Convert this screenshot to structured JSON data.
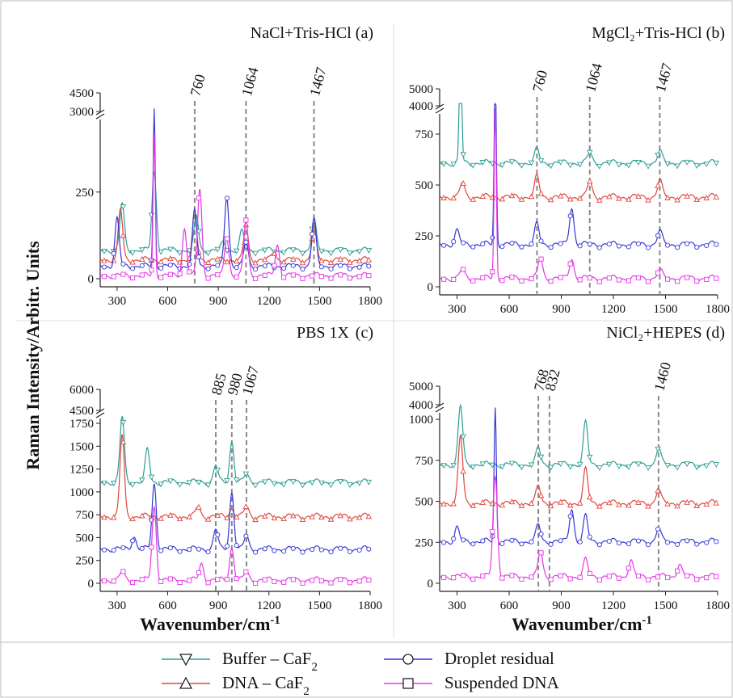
{
  "figure": {
    "ylabel": "Raman Intensity/Arbitr. Units",
    "xlabel": "Wavenumber/cm",
    "xlabel_sup": "-1"
  },
  "legend": [
    {
      "key": "buffer",
      "label": "Buffer – CaF",
      "sub": "2",
      "color": "#2e9e96",
      "marker": "triangle-down"
    },
    {
      "key": "dna",
      "label": "DNA – CaF",
      "sub": "2",
      "color": "#e0453a",
      "marker": "triangle-up"
    },
    {
      "key": "droplet",
      "label": "Droplet residual",
      "color": "#3636d6",
      "marker": "circle"
    },
    {
      "key": "suspended",
      "label": "Suspended DNA",
      "color": "#e636e6",
      "marker": "square"
    }
  ],
  "chart_data": [
    {
      "panel": "a",
      "type": "line",
      "title": "NaCl+Tris-HCl (a)",
      "x_ticks": [
        "300",
        "600",
        "900",
        "1200",
        "1500",
        "1800"
      ],
      "y_ticks": [
        "0",
        "250"
      ],
      "y_break_ticks": [
        "3000",
        "4500"
      ],
      "peak_lines": [
        "760",
        "1064",
        "1467"
      ],
      "series": [
        {
          "key": "buffer",
          "baseline": 0.18,
          "peaks": [
            [
              330,
              0.3
            ],
            [
              520,
              0.5
            ],
            [
              770,
              0.22
            ],
            [
              1040,
              0.12
            ],
            [
              1467,
              0.2
            ],
            [
              930,
              0.05
            ]
          ]
        },
        {
          "key": "dna",
          "baseline": 0.12,
          "peaks": [
            [
              320,
              0.32
            ],
            [
              760,
              0.3
            ],
            [
              1064,
              0.22
            ],
            [
              1467,
              0.2
            ],
            [
              1230,
              0.05
            ]
          ]
        },
        {
          "key": "droplet",
          "baseline": 0.08,
          "peaks": [
            [
              300,
              0.3
            ],
            [
              520,
              1.0
            ],
            [
              760,
              0.35
            ],
            [
              950,
              0.45
            ],
            [
              1064,
              0.15
            ],
            [
              1467,
              0.3
            ]
          ]
        },
        {
          "key": "suspended",
          "baseline": 0.02,
          "peaks": [
            [
              520,
              0.9
            ],
            [
              700,
              0.3
            ],
            [
              790,
              0.55
            ],
            [
              950,
              0.25
            ],
            [
              1064,
              0.35
            ],
            [
              1250,
              0.2
            ]
          ]
        }
      ]
    },
    {
      "panel": "b",
      "type": "line",
      "title": "MgCl₂+Tris-HCl (b)",
      "x_ticks": [
        "300",
        "600",
        "900",
        "1200",
        "1500",
        "1800"
      ],
      "y_ticks": [
        "0",
        "250",
        "500",
        "750"
      ],
      "y_break_ticks": [
        "4000",
        "5000"
      ],
      "peak_lines": [
        "760",
        "1064",
        "1467"
      ],
      "series": [
        {
          "key": "buffer",
          "baseline": 0.73,
          "peaks": [
            [
              320,
              1.0
            ],
            [
              760,
              0.08
            ],
            [
              1064,
              0.06
            ],
            [
              1467,
              0.07
            ]
          ]
        },
        {
          "key": "dna",
          "baseline": 0.53,
          "peaks": [
            [
              330,
              0.08
            ],
            [
              760,
              0.12
            ],
            [
              1064,
              0.09
            ],
            [
              1467,
              0.1
            ]
          ]
        },
        {
          "key": "droplet",
          "baseline": 0.25,
          "peaks": [
            [
              300,
              0.08
            ],
            [
              520,
              1.0
            ],
            [
              760,
              0.12
            ],
            [
              960,
              0.22
            ],
            [
              1467,
              0.08
            ]
          ]
        },
        {
          "key": "suspended",
          "baseline": 0.05,
          "peaks": [
            [
              330,
              0.05
            ],
            [
              520,
              1.0
            ],
            [
              780,
              0.12
            ],
            [
              960,
              0.12
            ],
            [
              1467,
              0.05
            ]
          ]
        }
      ]
    },
    {
      "panel": "c",
      "type": "line",
      "title": "PBS 1X",
      "panel_letter": "(c)",
      "x_ticks": [
        "300",
        "600",
        "900",
        "1200",
        "1500",
        "1800"
      ],
      "y_ticks": [
        "0",
        "250",
        "500",
        "750",
        "1000",
        "1250",
        "1500",
        "1750"
      ],
      "y_break_ticks": [
        "4500",
        "6000"
      ],
      "peak_lines": [
        "885",
        "980",
        "1067"
      ],
      "series": [
        {
          "key": "buffer",
          "baseline": 0.62,
          "peaks": [
            [
              330,
              0.4
            ],
            [
              480,
              0.2
            ],
            [
              885,
              0.1
            ],
            [
              980,
              0.25
            ],
            [
              1067,
              0.05
            ]
          ]
        },
        {
          "key": "dna",
          "baseline": 0.41,
          "peaks": [
            [
              330,
              0.5
            ],
            [
              780,
              0.06
            ],
            [
              980,
              0.05
            ],
            [
              1067,
              0.06
            ]
          ]
        },
        {
          "key": "droplet",
          "baseline": 0.21,
          "peaks": [
            [
              400,
              0.08
            ],
            [
              520,
              0.4
            ],
            [
              885,
              0.12
            ],
            [
              980,
              0.35
            ],
            [
              1067,
              0.08
            ]
          ]
        },
        {
          "key": "suspended",
          "baseline": 0.02,
          "peaks": [
            [
              330,
              0.05
            ],
            [
              520,
              0.45
            ],
            [
              800,
              0.1
            ],
            [
              980,
              0.2
            ],
            [
              1067,
              0.05
            ]
          ]
        }
      ]
    },
    {
      "panel": "d",
      "type": "line",
      "title": "NiCl₂+HEPES (d)",
      "x_ticks": [
        "300",
        "600",
        "900",
        "1200",
        "1500",
        "1800"
      ],
      "y_ticks": [
        "0",
        "250",
        "500",
        "750",
        "1000"
      ],
      "y_break_ticks": [
        "4000",
        "5000"
      ],
      "peak_lines": [
        "768",
        "832",
        "1460"
      ],
      "series": [
        {
          "key": "buffer",
          "baseline": 0.71,
          "peaks": [
            [
              320,
              0.35
            ],
            [
              768,
              0.1
            ],
            [
              1040,
              0.25
            ],
            [
              1460,
              0.1
            ]
          ]
        },
        {
          "key": "dna",
          "baseline": 0.48,
          "peaks": [
            [
              320,
              0.4
            ],
            [
              768,
              0.1
            ],
            [
              1040,
              0.2
            ],
            [
              1460,
              0.08
            ]
          ]
        },
        {
          "key": "droplet",
          "baseline": 0.25,
          "peaks": [
            [
              300,
              0.08
            ],
            [
              520,
              0.8
            ],
            [
              768,
              0.1
            ],
            [
              960,
              0.2
            ],
            [
              1040,
              0.15
            ],
            [
              1460,
              0.08
            ]
          ]
        },
        {
          "key": "suspended",
          "baseline": 0.04,
          "peaks": [
            [
              520,
              0.6
            ],
            [
              780,
              0.15
            ],
            [
              1040,
              0.1
            ],
            [
              1300,
              0.1
            ],
            [
              1580,
              0.08
            ]
          ]
        }
      ]
    }
  ]
}
